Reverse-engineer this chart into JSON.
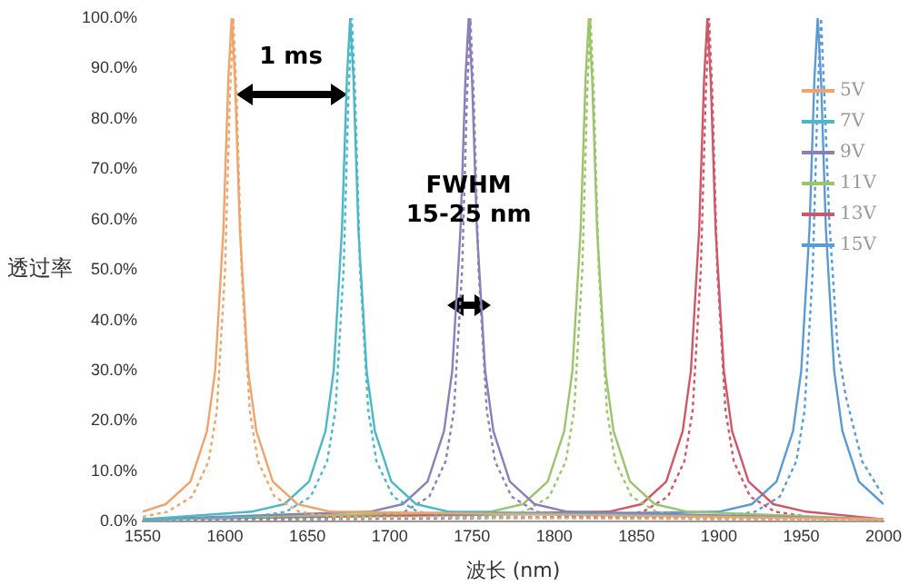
{
  "chart_data": {
    "type": "line",
    "xlabel": "波长 (nm)",
    "ylabel": "透过率",
    "xlim": [
      1550,
      2000
    ],
    "xticks": [
      1550,
      1600,
      1650,
      1700,
      1750,
      1800,
      1850,
      1900,
      1950,
      2000
    ],
    "ylim": [
      0,
      100
    ],
    "yticks": [
      {
        "value": 0,
        "label": "0.0%"
      },
      {
        "value": 10,
        "label": "10.0%"
      },
      {
        "value": 20,
        "label": "20.0%"
      },
      {
        "value": 30,
        "label": "30.0%"
      },
      {
        "value": 40,
        "label": "40.0%"
      },
      {
        "value": 50,
        "label": "50.0%"
      },
      {
        "value": 60,
        "label": "60.0%"
      },
      {
        "value": 70,
        "label": "70.0%"
      },
      {
        "value": 80,
        "label": "80.0%"
      },
      {
        "value": 90,
        "label": "90.0%"
      },
      {
        "value": 100,
        "label": "100.0%"
      }
    ],
    "grid": false,
    "legend": "top right",
    "marker": "none",
    "line_style": "solid",
    "annotations": [
      "1 ms",
      "FWHM\n15-25 nm"
    ],
    "series": [
      {
        "name": "5V",
        "color": "#f0a46c",
        "x": [
          1550,
          1564,
          1579,
          1589,
          1594,
          1599,
          1602,
          1604,
          1606,
          1609,
          1614,
          1619,
          1629,
          1644,
          1664,
          2000
        ],
        "values": [
          2,
          3.5,
          8,
          18,
          30,
          58,
          88,
          100,
          88,
          58,
          30,
          18,
          8,
          3.5,
          2,
          0.5
        ]
      },
      {
        "color": "#f0a46c",
        "line_style": "dotted",
        "x": [
          1550,
          1565,
          1580,
          1590,
          1595,
          1600,
          1603,
          1605,
          1607,
          1610,
          1615,
          1620,
          1630,
          1645,
          1665,
          2000
        ],
        "values": [
          1,
          2,
          5,
          12,
          22,
          50,
          85,
          100,
          85,
          50,
          22,
          12,
          5,
          2,
          1,
          0.3
        ]
      },
      {
        "name": "7V",
        "color": "#4bb8c8",
        "x": [
          1550,
          1616,
          1636,
          1651,
          1661,
          1666,
          1671,
          1674,
          1676,
          1678,
          1681,
          1686,
          1691,
          1701,
          1716,
          1736,
          2000
        ],
        "values": [
          0.5,
          2,
          3.5,
          8,
          18,
          30,
          58,
          88,
          100,
          88,
          58,
          30,
          18,
          8,
          3.5,
          2,
          0.5
        ]
      },
      {
        "color": "#4bb8c8",
        "line_style": "dotted",
        "x": [
          1550,
          1617,
          1637,
          1652,
          1662,
          1667,
          1672,
          1675,
          1677,
          1679,
          1682,
          1687,
          1692,
          1702,
          1717,
          1737,
          2000
        ],
        "values": [
          0.3,
          1,
          2,
          5,
          12,
          22,
          50,
          85,
          100,
          85,
          50,
          22,
          12,
          5,
          2,
          1,
          0.3
        ]
      },
      {
        "name": "9V",
        "color": "#8a7fb8",
        "x": [
          1550,
          1688,
          1708,
          1723,
          1733,
          1738,
          1743,
          1746,
          1748,
          1750,
          1753,
          1758,
          1763,
          1773,
          1788,
          1808,
          2000
        ],
        "values": [
          0.5,
          2,
          3.5,
          8,
          18,
          30,
          58,
          88,
          100,
          88,
          58,
          30,
          18,
          8,
          3.5,
          2,
          0.5
        ]
      },
      {
        "color": "#8a7fb8",
        "line_style": "dotted",
        "x": [
          1550,
          1689,
          1709,
          1724,
          1734,
          1739,
          1744,
          1747,
          1749,
          1751,
          1754,
          1759,
          1764,
          1774,
          1789,
          1809,
          2000
        ],
        "values": [
          0.3,
          1,
          2,
          5,
          12,
          22,
          50,
          85,
          100,
          85,
          50,
          22,
          12,
          5,
          2,
          1,
          0.3
        ]
      },
      {
        "name": "11V",
        "color": "#9cc46a",
        "x": [
          1550,
          1761,
          1781,
          1796,
          1806,
          1811,
          1816,
          1819,
          1821,
          1823,
          1826,
          1831,
          1836,
          1846,
          1861,
          1881,
          2000
        ],
        "values": [
          0.5,
          2,
          3.5,
          8,
          18,
          30,
          58,
          88,
          100,
          88,
          58,
          30,
          18,
          8,
          3.5,
          2,
          0.5
        ]
      },
      {
        "color": "#9cc46a",
        "line_style": "dotted",
        "x": [
          1550,
          1762,
          1782,
          1797,
          1807,
          1812,
          1817,
          1820,
          1822,
          1824,
          1827,
          1832,
          1837,
          1847,
          1862,
          1882,
          2000
        ],
        "values": [
          0.3,
          1,
          2,
          5,
          12,
          22,
          50,
          85,
          100,
          85,
          50,
          22,
          12,
          5,
          2,
          1,
          0.3
        ]
      },
      {
        "name": "13V",
        "color": "#d0576a",
        "x": [
          1550,
          1833,
          1853,
          1868,
          1878,
          1883,
          1888,
          1891,
          1893,
          1895,
          1898,
          1903,
          1908,
          1918,
          1933,
          1953,
          2000
        ],
        "values": [
          0.5,
          2,
          3.5,
          8,
          18,
          30,
          58,
          88,
          100,
          88,
          58,
          30,
          18,
          8,
          3.5,
          2,
          0.5
        ]
      },
      {
        "color": "#d0576a",
        "line_style": "dotted",
        "x": [
          1550,
          1834,
          1854,
          1869,
          1879,
          1884,
          1889,
          1892,
          1894,
          1896,
          1899,
          1904,
          1909,
          1919,
          1934,
          1954,
          2000
        ],
        "values": [
          0.3,
          1,
          2,
          5,
          12,
          22,
          50,
          85,
          100,
          85,
          50,
          22,
          12,
          5,
          2,
          1,
          0.3
        ]
      },
      {
        "name": "15V",
        "color": "#5b9bd5",
        "x": [
          1550,
          1900,
          1920,
          1935,
          1945,
          1950,
          1955,
          1958,
          1960,
          1962,
          1965,
          1970,
          1975,
          1985,
          2000
        ],
        "values": [
          0.5,
          2,
          3.5,
          8,
          18,
          30,
          58,
          88,
          100,
          88,
          58,
          30,
          18,
          8,
          3.5
        ]
      },
      {
        "color": "#5b9bd5",
        "line_style": "dotted",
        "x": [
          1550,
          1902,
          1922,
          1937,
          1947,
          1952,
          1957,
          1960,
          1962,
          1964,
          1967,
          1972,
          1977,
          1987,
          2000
        ],
        "values": [
          0.3,
          1,
          2,
          5,
          12,
          22,
          50,
          85,
          100,
          85,
          60,
          35,
          25,
          12,
          5
        ]
      }
    ]
  }
}
